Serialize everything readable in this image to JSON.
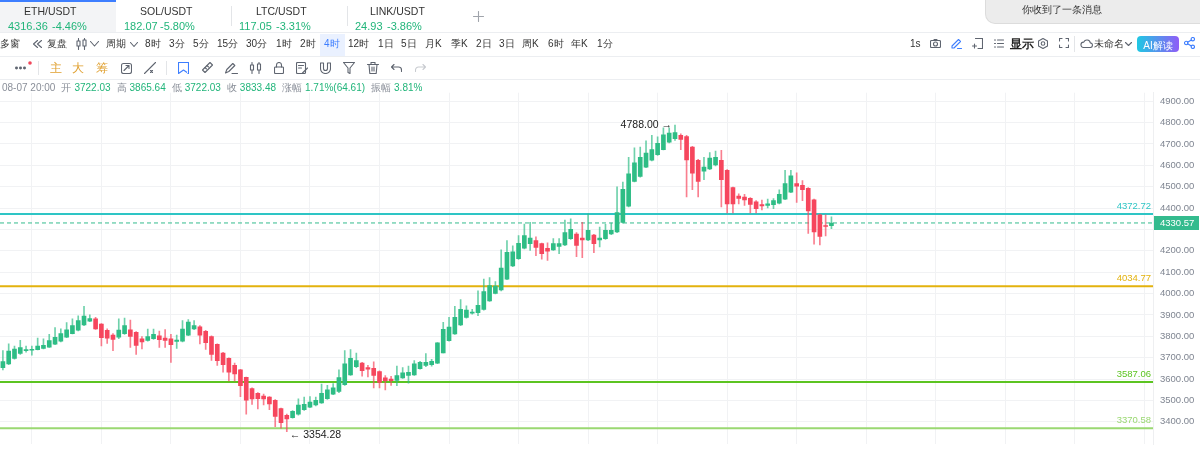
{
  "chart_data": {
    "type": "candlestick",
    "categories": [
      null,
      null,
      null,
      null,
      null,
      null,
      null,
      null,
      null,
      null,
      null,
      null,
      null,
      null,
      null,
      null,
      null,
      null,
      null,
      null,
      null,
      null,
      null,
      null,
      null,
      null,
      null,
      null,
      null,
      null,
      null,
      null,
      null,
      null,
      null,
      null,
      null,
      null,
      null,
      null,
      null,
      null,
      null,
      null,
      null,
      null,
      null,
      null,
      null,
      null,
      null,
      null,
      null,
      null,
      null,
      null,
      null,
      null,
      null,
      null,
      null,
      null,
      null,
      null,
      null,
      null,
      null,
      null,
      null,
      null,
      null,
      null,
      null,
      null,
      null,
      null,
      null,
      null,
      null,
      null,
      null,
      null,
      null,
      null,
      null,
      null,
      null,
      null,
      null,
      null,
      null,
      null,
      null,
      null,
      null,
      null,
      null,
      null,
      null,
      null,
      null,
      null,
      null,
      null,
      null,
      null,
      null,
      null,
      null,
      null,
      null,
      null,
      null,
      null,
      null,
      null,
      null,
      null,
      null,
      null,
      null,
      null,
      null,
      null,
      null,
      null,
      null,
      null,
      null,
      null,
      null,
      null,
      null,
      null,
      null,
      null,
      null,
      null,
      null,
      null,
      null,
      null,
      null,
      null,
      null,
      null,
      null,
      null,
      null,
      null,
      null,
      null,
      null,
      null,
      null,
      null,
      null,
      null,
      null,
      null,
      null,
      null,
      null,
      null,
      null,
      null,
      null,
      null,
      null,
      null,
      null,
      null,
      null,
      null,
      null,
      null,
      null,
      null,
      null,
      null,
      null,
      null,
      null,
      null,
      null,
      null,
      null,
      null,
      null,
      null,
      null,
      null,
      null,
      null,
      null,
      null,
      null,
      null,
      null
    ],
    "ohlc": [
      [
        3654,
        3733,
        3643,
        3682
      ],
      [
        3671,
        3765,
        3668,
        3731
      ],
      [
        3697,
        3755,
        3693,
        3741
      ],
      [
        3720,
        3781,
        3716,
        3748
      ],
      [
        3733,
        3755,
        3726,
        3736
      ],
      [
        3735,
        3755,
        3712,
        3736
      ],
      [
        3738,
        3792,
        3736,
        3754
      ],
      [
        3744,
        3789,
        3741,
        3758
      ],
      [
        3749,
        3809,
        3748,
        3780
      ],
      [
        3764,
        3841,
        3761,
        3796
      ],
      [
        3777,
        3835,
        3774,
        3813
      ],
      [
        3796,
        3864,
        3794,
        3831
      ],
      [
        3813,
        3882,
        3812,
        3850
      ],
      [
        3829,
        3896,
        3826,
        3874
      ],
      [
        3853,
        3940,
        3850,
        3895
      ],
      [
        3871,
        3901,
        3869,
        3883
      ],
      [
        3882,
        3889,
        3832,
        3835
      ],
      [
        3857,
        3860,
        3755,
        3794
      ],
      [
        3828,
        3835,
        3767,
        3792
      ],
      [
        3806,
        3813,
        3733,
        3786
      ],
      [
        3796,
        3882,
        3789,
        3829
      ],
      [
        3813,
        3885,
        3809,
        3850
      ],
      [
        3831,
        3876,
        3748,
        3800
      ],
      [
        3819,
        3822,
        3716,
        3758
      ],
      [
        3789,
        3799,
        3741,
        3774
      ],
      [
        3781,
        3834,
        3777,
        3799
      ],
      [
        3789,
        3834,
        3786,
        3810
      ],
      [
        3802,
        3825,
        3748,
        3784
      ],
      [
        3792,
        3832,
        3748,
        3781
      ],
      [
        3789,
        3809,
        3678,
        3761
      ],
      [
        3776,
        3806,
        3744,
        3783
      ],
      [
        3777,
        3874,
        3774,
        3834
      ],
      [
        3806,
        3879,
        3803,
        3867
      ],
      [
        3835,
        3874,
        3831,
        3850
      ],
      [
        3845,
        3850,
        3765,
        3806
      ],
      [
        3824,
        3828,
        3739,
        3770
      ],
      [
        3799,
        3803,
        3687,
        3716
      ],
      [
        3763,
        3765,
        3664,
        3686
      ],
      [
        3722,
        3725,
        3632,
        3668
      ],
      [
        3697,
        3700,
        3591,
        3632
      ],
      [
        3665,
        3675,
        3591,
        3624
      ],
      [
        3643,
        3646,
        3518,
        3569
      ],
      [
        3608,
        3610,
        3436,
        3501
      ],
      [
        3556,
        3559,
        3482,
        3507
      ],
      [
        3533,
        3537,
        3460,
        3508
      ],
      [
        3521,
        3530,
        3479,
        3507
      ],
      [
        3516,
        3518,
        3457,
        3484
      ],
      [
        3501,
        3504,
        3377,
        3425
      ],
      [
        3462,
        3465,
        3370,
        3396
      ],
      [
        3431,
        3436,
        3354.28,
        3414
      ],
      [
        3420,
        3453,
        3417,
        3449
      ],
      [
        3436,
        3508,
        3431,
        3479
      ],
      [
        3457,
        3516,
        3454,
        3482
      ],
      [
        3469,
        3518,
        3466,
        3492
      ],
      [
        3479,
        3516,
        3475,
        3501
      ],
      [
        3489,
        3577,
        3486,
        3533
      ],
      [
        3508,
        3571,
        3505,
        3550
      ],
      [
        3530,
        3579,
        3527,
        3559
      ],
      [
        3542,
        3643,
        3537,
        3607
      ],
      [
        3574,
        3733,
        3571,
        3671
      ],
      [
        3620,
        3738,
        3617,
        3697
      ],
      [
        3658,
        3722,
        3654,
        3687
      ],
      [
        3675,
        3678,
        3614,
        3639
      ],
      [
        3654,
        3664,
        3610,
        3646
      ],
      [
        3651,
        3681,
        3559,
        3617
      ],
      [
        3635,
        3639,
        3559,
        3584
      ],
      [
        3606,
        3617,
        3550,
        3593
      ],
      [
        3600,
        3613,
        3571,
        3593
      ],
      [
        3594,
        3661,
        3569,
        3616
      ],
      [
        3606,
        3654,
        3603,
        3629
      ],
      [
        3617,
        3661,
        3581,
        3632
      ],
      [
        3620,
        3687,
        3617,
        3671
      ],
      [
        3649,
        3683,
        3646,
        3678
      ],
      [
        3664,
        3719,
        3658,
        3678
      ],
      [
        3668,
        3693,
        3661,
        3683
      ],
      [
        3675,
        3771,
        3672,
        3770
      ],
      [
        3722.03,
        3865.64,
        3722.03,
        3833.48
      ],
      [
        3780,
        3889,
        3777,
        3843
      ],
      [
        3812,
        3940,
        3809,
        3889
      ],
      [
        3853,
        3972,
        3850,
        3926
      ],
      [
        3889,
        3943,
        3885,
        3923
      ],
      [
        3908,
        3926,
        3904,
        3914
      ],
      [
        3911,
        4013,
        3897,
        3945
      ],
      [
        3926,
        4068,
        3923,
        4010
      ],
      [
        3966,
        4075,
        3963,
        4038
      ],
      [
        4001,
        4056,
        3998,
        4035
      ],
      [
        4017,
        4205,
        4013,
        4119
      ],
      [
        4068,
        4248,
        4065,
        4193
      ],
      [
        4129,
        4224,
        4126,
        4196
      ],
      [
        4163,
        4271,
        4160,
        4235
      ],
      [
        4213,
        4325,
        4209,
        4271
      ],
      [
        4234,
        4333,
        4202,
        4260
      ],
      [
        4248,
        4266,
        4177,
        4216
      ],
      [
        4234,
        4237,
        4161,
        4187
      ],
      [
        4212,
        4238,
        4155,
        4199
      ],
      [
        4205,
        4257,
        4202,
        4234
      ],
      [
        4221,
        4257,
        4187,
        4234
      ],
      [
        4228,
        4344,
        4224,
        4285
      ],
      [
        4257,
        4350,
        4253,
        4301
      ],
      [
        4279,
        4286,
        4173,
        4226
      ],
      [
        4260,
        4333,
        4168,
        4251
      ],
      [
        4251,
        4373,
        4248,
        4296
      ],
      [
        4274,
        4277,
        4192,
        4234
      ],
      [
        4251,
        4311,
        4219,
        4260
      ],
      [
        4257,
        4324,
        4254,
        4296
      ],
      [
        4279,
        4330,
        4276,
        4296
      ],
      [
        4289,
        4500,
        4285,
        4379
      ],
      [
        4333,
        4522,
        4330,
        4488
      ],
      [
        4409,
        4638,
        4406,
        4561
      ],
      [
        4525,
        4682,
        4522,
        4612
      ],
      [
        4548,
        4685,
        4545,
        4638
      ],
      [
        4592,
        4715,
        4589,
        4657
      ],
      [
        4624,
        4740,
        4621,
        4674
      ],
      [
        4650,
        4733,
        4647,
        4703
      ],
      [
        4674,
        4776,
        4672,
        4743
      ],
      [
        4708,
        4776,
        4705,
        4751
      ],
      [
        4725,
        4788,
        4717,
        4754
      ],
      [
        4740,
        4747,
        4674,
        4722
      ],
      [
        4735,
        4740,
        4452,
        4626
      ],
      [
        4685,
        4689,
        4486,
        4563
      ],
      [
        4624,
        4628,
        4452,
        4525
      ],
      [
        4573,
        4638,
        4533,
        4592
      ],
      [
        4583,
        4660,
        4580,
        4634
      ],
      [
        4602,
        4667,
        4597,
        4638
      ],
      [
        4624,
        4670,
        4406,
        4533
      ],
      [
        4577,
        4580,
        4377,
        4420
      ],
      [
        4496,
        4499,
        4377,
        4420
      ],
      [
        4456,
        4467,
        4420,
        4445
      ],
      [
        4452,
        4464,
        4413,
        4438
      ],
      [
        4446,
        4449,
        4377,
        4417
      ],
      [
        4430,
        4435,
        4377,
        4398
      ],
      [
        4416,
        4438,
        4391,
        4410
      ],
      [
        4413,
        4442,
        4401,
        4420
      ],
      [
        4416,
        4445,
        4397,
        4435
      ],
      [
        4423,
        4486,
        4420,
        4464
      ],
      [
        4442,
        4577,
        4439,
        4515
      ],
      [
        4475,
        4577,
        4472,
        4551
      ],
      [
        4515,
        4565,
        4427,
        4503
      ],
      [
        4507,
        4529,
        4435,
        4486
      ],
      [
        4493,
        4496,
        4282,
        4387
      ],
      [
        4439,
        4442,
        4231,
        4289
      ],
      [
        4369,
        4372,
        4228,
        4268
      ],
      [
        4318,
        4369,
        4270,
        4314
      ],
      [
        4318,
        4359,
        4304,
        4330.57
      ],
      null,
      null,
      null,
      null,
      null,
      null,
      null,
      null,
      null,
      null,
      null,
      null,
      null,
      null,
      null,
      null,
      null,
      null,
      null,
      null,
      null,
      null,
      null,
      null,
      null,
      null,
      null,
      null,
      null,
      null,
      null,
      null,
      null,
      null,
      null,
      null,
      null,
      null,
      null,
      null,
      null,
      null,
      null,
      null,
      null,
      null,
      null,
      null,
      null,
      null,
      null,
      null,
      null,
      null,
      null
    ],
    "colors": [
      "#2ebd85",
      "#2ebd85",
      "#2ebd85",
      "#2ebd85",
      "#2ebd85",
      "#2ebd85",
      "#2ebd85",
      "#2ebd85",
      "#2ebd85",
      "#2ebd85",
      "#2ebd85",
      "#2ebd85",
      "#2ebd85",
      "#2ebd85",
      "#2ebd85",
      "#2ebd85",
      "#f6465d",
      "#f6465d",
      "#f6465d",
      "#f6465d",
      "#2ebd85",
      "#2ebd85",
      "#f6465d",
      "#f6465d",
      "#f6465d",
      "#2ebd85",
      "#2ebd85",
      "#f6465d",
      "#f6465d",
      "#f6465d",
      "#2ebd85",
      "#2ebd85",
      "#2ebd85",
      "#2ebd85",
      "#f6465d",
      "#f6465d",
      "#f6465d",
      "#f6465d",
      "#f6465d",
      "#f6465d",
      "#f6465d",
      "#f6465d",
      "#f6465d",
      "#f6465d",
      "#f6465d",
      "#f6465d",
      "#f6465d",
      "#f6465d",
      "#f6465d",
      "#f6465d",
      "#2ebd85",
      "#2ebd85",
      "#2ebd85",
      "#2ebd85",
      "#2ebd85",
      "#2ebd85",
      "#2ebd85",
      "#2ebd85",
      "#2ebd85",
      "#2ebd85",
      "#2ebd85",
      "#2ebd85",
      "#f6465d",
      "#f6465d",
      "#f6465d",
      "#f6465d",
      "#f6465d",
      "#f6465d",
      "#2ebd85",
      "#2ebd85",
      "#2ebd85",
      "#2ebd85",
      "#2ebd85",
      "#2ebd85",
      "#2ebd85",
      "#2ebd85",
      "#2ebd85",
      "#2ebd85",
      "#2ebd85",
      "#2ebd85",
      "#2ebd85",
      "#2ebd85",
      "#2ebd85",
      "#2ebd85",
      "#2ebd85",
      "#2ebd85",
      "#2ebd85",
      "#2ebd85",
      "#2ebd85",
      "#2ebd85",
      "#2ebd85",
      "#2ebd85",
      "#f6465d",
      "#f6465d",
      "#f6465d",
      "#2ebd85",
      "#2ebd85",
      "#2ebd85",
      "#2ebd85",
      "#f6465d",
      "#f6465d",
      "#2ebd85",
      "#f6465d",
      "#2ebd85",
      "#2ebd85",
      "#2ebd85",
      "#2ebd85",
      "#2ebd85",
      "#2ebd85",
      "#2ebd85",
      "#2ebd85",
      "#2ebd85",
      "#2ebd85",
      "#2ebd85",
      "#2ebd85",
      "#2ebd85",
      "#2ebd85",
      "#f6465d",
      "#f6465d",
      "#f6465d",
      "#f6465d",
      "#2ebd85",
      "#2ebd85",
      "#2ebd85",
      "#f6465d",
      "#f6465d",
      "#f6465d",
      "#f6465d",
      "#f6465d",
      "#f6465d",
      "#f6465d",
      "#f6465d",
      "#2ebd85",
      "#2ebd85",
      "#2ebd85",
      "#2ebd85",
      "#2ebd85",
      "#f6465d",
      "#f6465d",
      "#f6465d",
      "#f6465d",
      "#f6465d",
      "#f6465d",
      "#2ebd85",
      null,
      null,
      null,
      null,
      null,
      null,
      null,
      null,
      null,
      null,
      null,
      null,
      null,
      null,
      null,
      null,
      null,
      null,
      null,
      null,
      null,
      null,
      null,
      null,
      null,
      null,
      null,
      null,
      null,
      null,
      null,
      null,
      null,
      null,
      null,
      null,
      null,
      null,
      null,
      null,
      null,
      null,
      null,
      null,
      null,
      null,
      null,
      null,
      null,
      null,
      null,
      null,
      null,
      null,
      null
    ],
    "ylim": [
      3295,
      4940
    ],
    "yticks": [
      {
        "value": 3400,
        "label": "3400.00"
      },
      {
        "value": 3500,
        "label": "3500.00"
      },
      {
        "value": 3600,
        "label": "3600.00"
      },
      {
        "value": 3700,
        "label": "3700.00"
      },
      {
        "value": 3800,
        "label": "3800.00"
      },
      {
        "value": 3900,
        "label": "3900.00"
      },
      {
        "value": 4000,
        "label": "4000.00"
      },
      {
        "value": 4100,
        "label": "4100.00"
      },
      {
        "value": 4200,
        "label": "4200.00"
      },
      {
        "value": 4300,
        "label": null
      },
      {
        "value": 4400,
        "label": "4400.00"
      },
      {
        "value": 4500,
        "label": "4500.00"
      },
      {
        "value": 4600,
        "label": "4600.00"
      },
      {
        "value": 4700,
        "label": "4700.00"
      },
      {
        "value": 4800,
        "label": "4800.00"
      },
      {
        "value": 4900,
        "label": "4900.00"
      }
    ],
    "grid": true,
    "tick_labels": "y",
    "ref_lines": [
      {
        "axis": "y",
        "value": 4372.72,
        "label": "4372.72",
        "color": "#2ec5c5"
      },
      {
        "axis": "y",
        "value": 4330.57,
        "label": "4330.57",
        "color": "#34bb8e",
        "line_style": "dashed"
      },
      {
        "axis": "y",
        "value": 4034.77,
        "label": "4034.77",
        "color": "#e3b20e"
      },
      {
        "axis": "y",
        "value": 3587.06,
        "label": "3587.06",
        "color": "#5cc421"
      },
      {
        "axis": "y",
        "value": 3370.58,
        "label": "3370.58",
        "color": "#9ad872"
      }
    ],
    "annotations": [
      "ETH/USDT",
      "4316.36",
      "-4.46%",
      "SOL/USDT",
      "182.07",
      "-5.80%",
      "LTC/USDT",
      "117.05",
      "-3.31%",
      "LINK/USDT",
      "24.93",
      "-3.86%",
      "你收到了一条消息",
      "多窗",
      "复盘",
      "周期",
      "8时",
      "3分",
      "5分",
      "15分",
      "30分",
      "1时",
      "2时",
      "4时",
      "12时",
      "1日",
      "5日",
      "月K",
      "季K",
      "2日",
      "3日",
      "周K",
      "6时",
      "年K",
      "1分",
      "1s",
      "显示",
      "未命名",
      "AI解读",
      "主",
      "大",
      "筹",
      "08-07 20:00",
      "开",
      "3722.03",
      "高",
      "3865.64",
      "低",
      "3722.03",
      "收",
      "3833.48",
      "涨幅",
      "1.71%(64.61)",
      "振幅",
      "3.81%",
      "4788.00 →",
      {
        "text": "← 3354.28",
        "y": 3354.28
      }
    ]
  }
}
